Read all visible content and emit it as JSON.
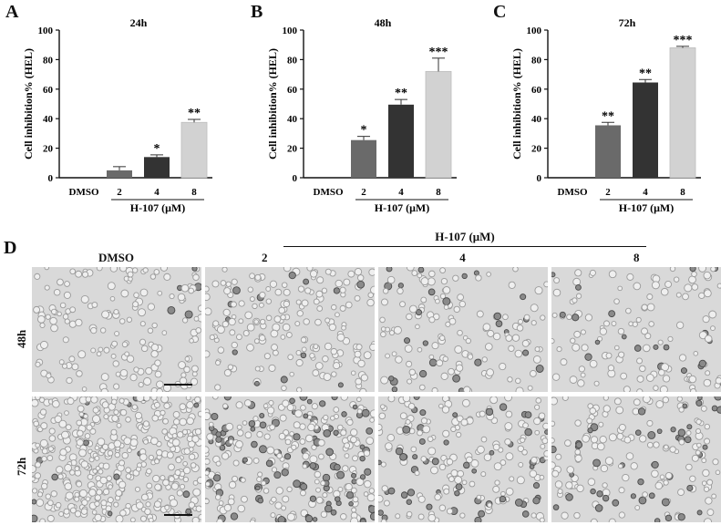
{
  "panels": {
    "A": "A",
    "B": "B",
    "C": "C",
    "D": "D"
  },
  "chart_data": [
    {
      "type": "bar",
      "title": "24h",
      "ylabel": "Cell inhibition% (HEL)",
      "xlabel": "H-107 (μM)",
      "categories": [
        "DMSO",
        "2",
        "4",
        "8"
      ],
      "values": [
        0,
        5,
        14,
        37.5
      ],
      "errors": [
        0,
        2.5,
        1.5,
        2
      ],
      "significance": [
        "",
        "",
        "*",
        "**"
      ],
      "ylim": [
        0,
        100
      ],
      "yticks": [
        0,
        20,
        40,
        60,
        80,
        100
      ],
      "colors": [
        "#ffffff",
        "#6a6a6a",
        "#333333",
        "#d2d2d2"
      ]
    },
    {
      "type": "bar",
      "title": "48h",
      "ylabel": "Cell inhibition% (HEL)",
      "xlabel": "H-107 (μM)",
      "categories": [
        "DMSO",
        "2",
        "4",
        "8"
      ],
      "values": [
        0,
        25.5,
        49.5,
        72
      ],
      "errors": [
        0,
        2.5,
        3.5,
        9
      ],
      "significance": [
        "",
        "*",
        "**",
        "***"
      ],
      "ylim": [
        0,
        100
      ],
      "yticks": [
        0,
        20,
        40,
        60,
        80,
        100
      ],
      "colors": [
        "#ffffff",
        "#6a6a6a",
        "#333333",
        "#d2d2d2"
      ]
    },
    {
      "type": "bar",
      "title": "72h",
      "ylabel": "Cell inhibition% (HEL)",
      "xlabel": "H-107 (μM)",
      "categories": [
        "DMSO",
        "2",
        "4",
        "8"
      ],
      "values": [
        0,
        35.5,
        64.5,
        88
      ],
      "errors": [
        0,
        2,
        2,
        1
      ],
      "significance": [
        "",
        "**",
        "**",
        "***"
      ],
      "ylim": [
        0,
        100
      ],
      "yticks": [
        0,
        20,
        40,
        60,
        80,
        100
      ],
      "colors": [
        "#ffffff",
        "#6a6a6a",
        "#333333",
        "#d2d2d2"
      ]
    }
  ],
  "micrographs": {
    "header": "H-107 (μM)",
    "columns": [
      "DMSO",
      "2",
      "4",
      "8"
    ],
    "rows": [
      "48h",
      "72h"
    ]
  }
}
